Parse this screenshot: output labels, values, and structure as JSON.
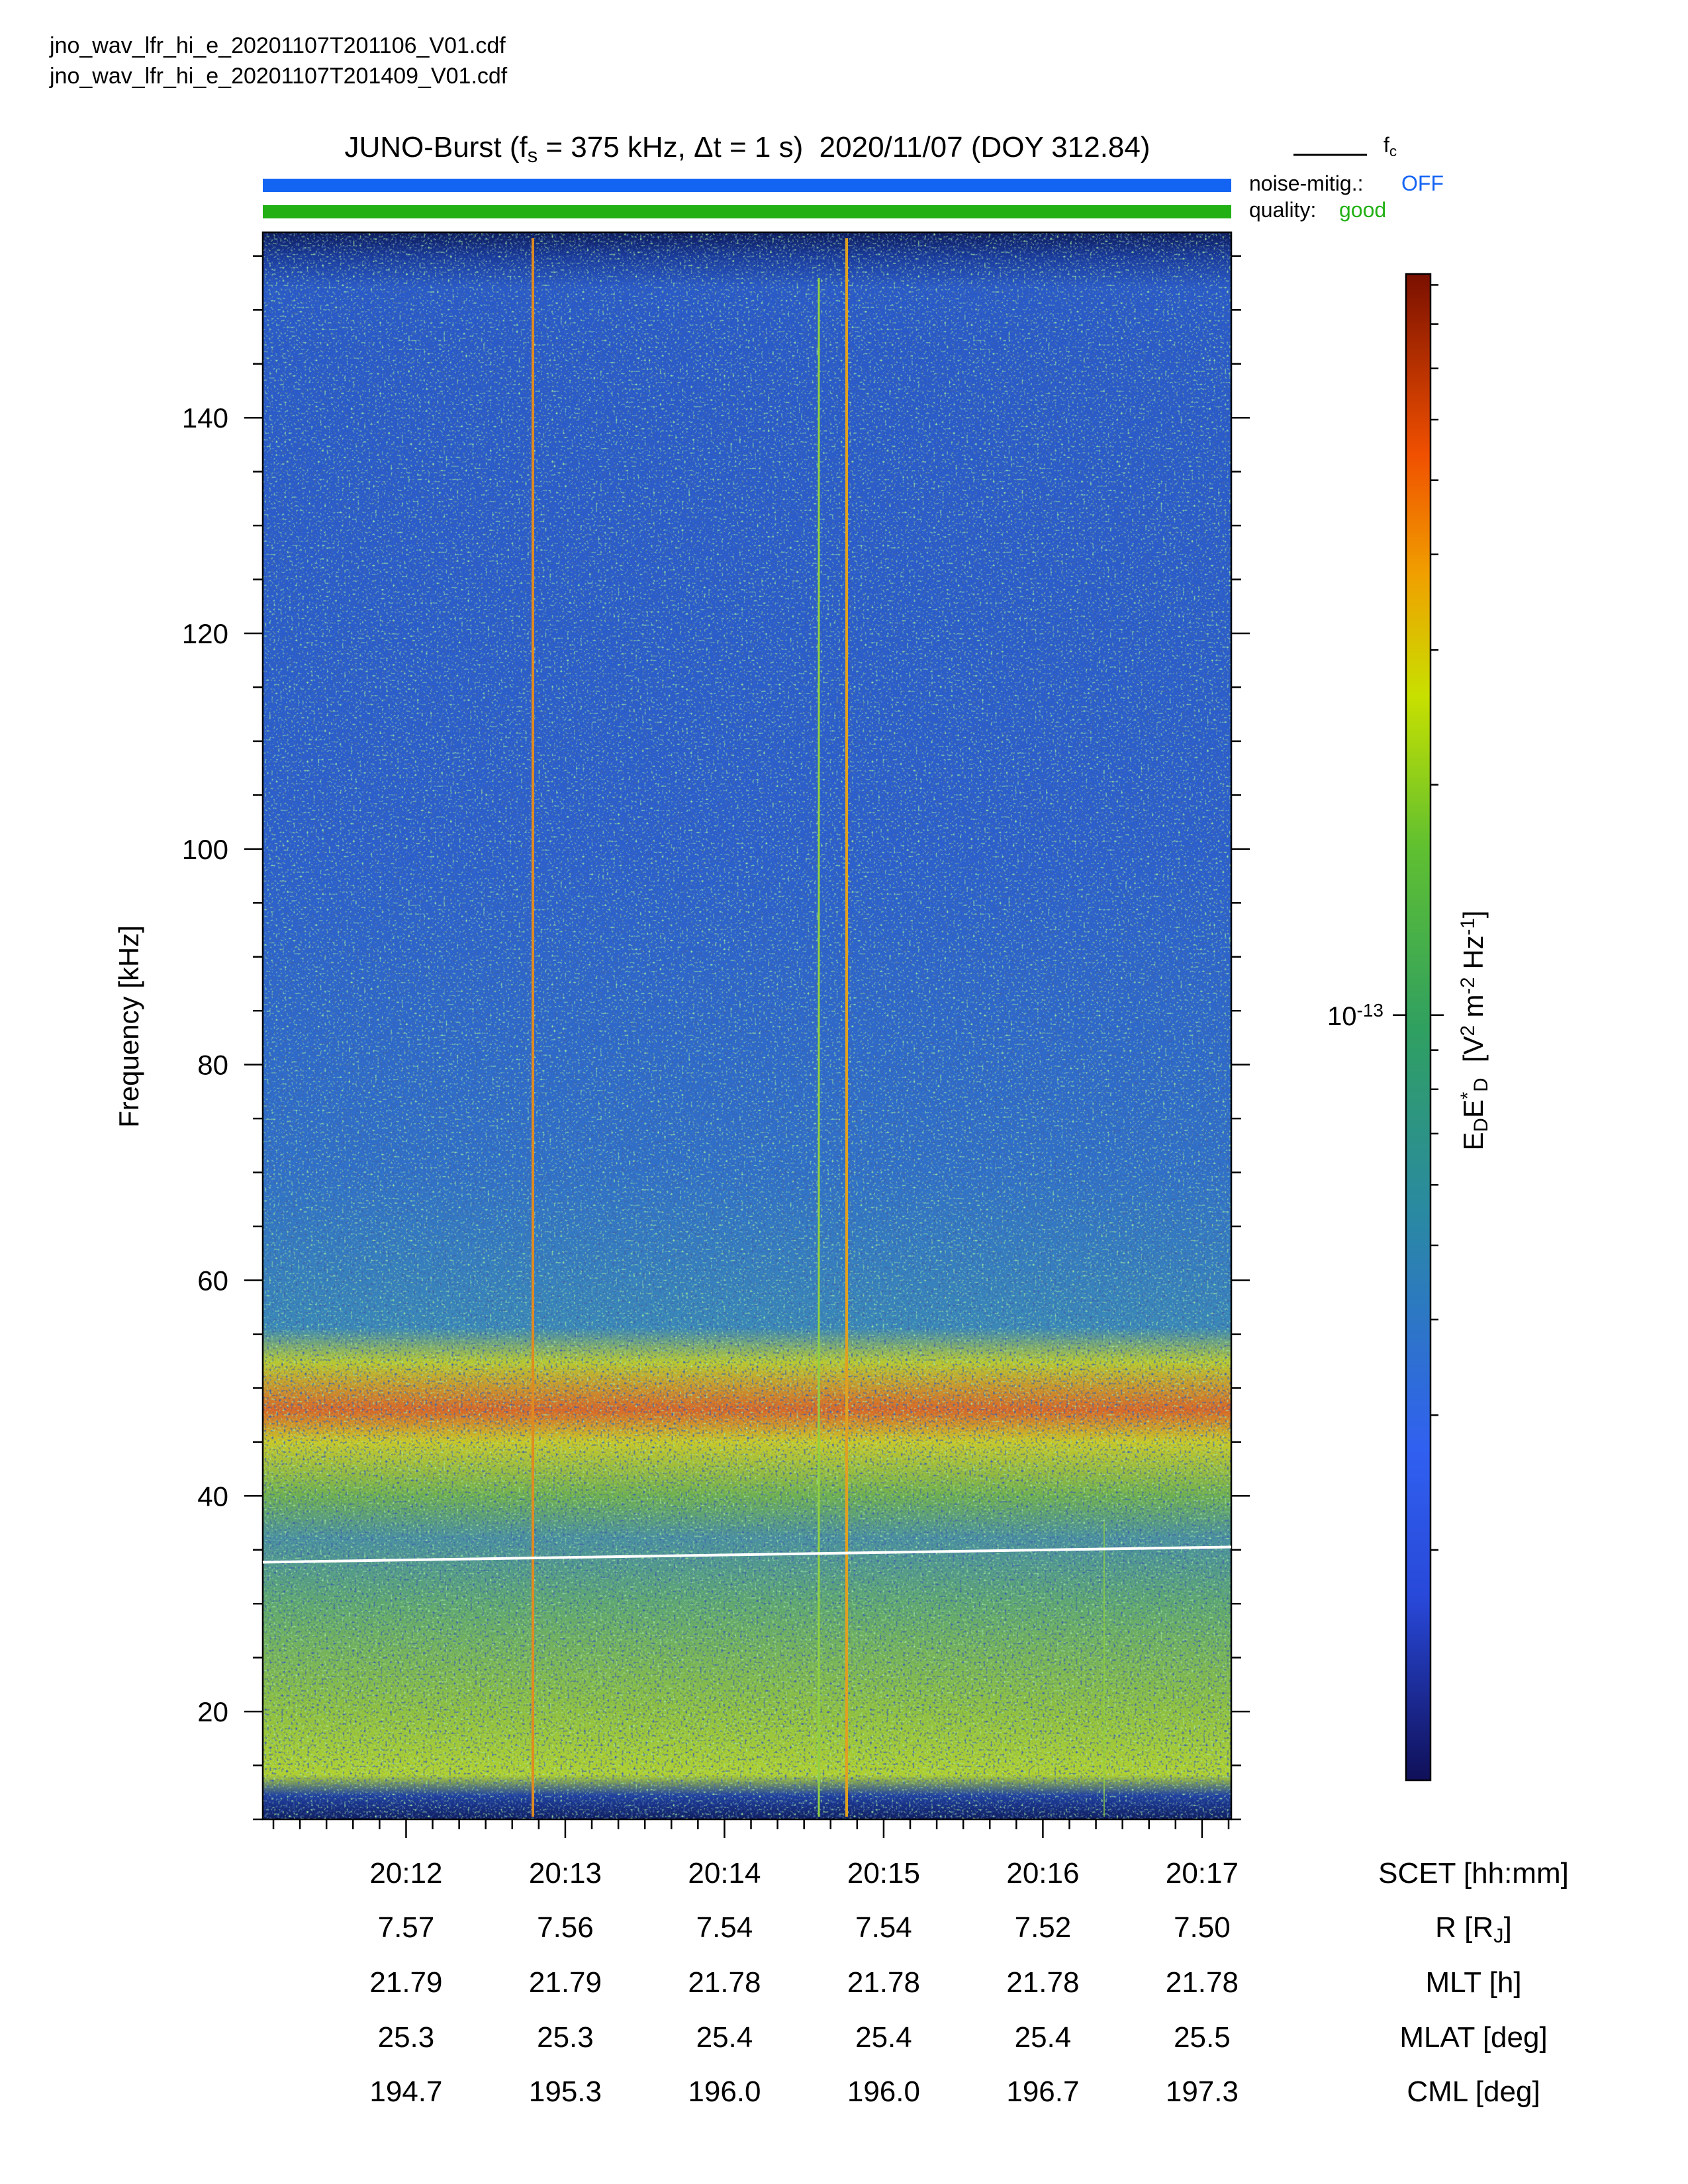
{
  "chart_data": {
    "type": "spectrogram",
    "files": [
      "jno_wav_lfr_hi_e_20201107T201106_V01.cdf",
      "jno_wav_lfr_hi_e_20201107T201409_V01.cdf"
    ],
    "title": [
      {
        "text": "JUNO-Burst (f"
      },
      {
        "text": "s",
        "sub": true
      },
      {
        "text": " = 375 kHz, Δt = 1 s)  2020/11/07 (DOY 312.84)"
      }
    ],
    "status": [
      {
        "label": "noise-mitig.:",
        "value": "OFF",
        "color": "#1464f4"
      },
      {
        "label": "quality:",
        "value": "good",
        "color": "#22b014"
      }
    ],
    "ylabel": "Frequency [kHz]",
    "ylim": [
      10,
      157.2
    ],
    "yticks": [
      20,
      40,
      60,
      80,
      100,
      120,
      140
    ],
    "yticks_minor": [
      10,
      15,
      25,
      30,
      35,
      45,
      50,
      55,
      65,
      70,
      75,
      85,
      90,
      95,
      105,
      110,
      115,
      125,
      130,
      135,
      145,
      150,
      155
    ],
    "xlabel": "SCET [hh:mm]",
    "xlim": [
      72666,
      73031
    ],
    "xticks": [
      {
        "value": 72720,
        "label": "20:12"
      },
      {
        "value": 72780,
        "label": "20:13"
      },
      {
        "value": 72840,
        "label": "20:14"
      },
      {
        "value": 72900,
        "label": "20:15"
      },
      {
        "value": 72960,
        "label": "20:16"
      },
      {
        "value": 73020,
        "label": "20:17"
      }
    ],
    "xticks_minor": [
      72670,
      72680,
      72690,
      72700,
      72710,
      72730,
      72740,
      72750,
      72760,
      72770,
      72790,
      72800,
      72810,
      72820,
      72830,
      72850,
      72860,
      72870,
      72880,
      72890,
      72910,
      72920,
      72930,
      72940,
      72950,
      72970,
      72980,
      72990,
      73000,
      73010,
      73030
    ],
    "series": [
      {
        "name": [
          {
            "text": "f"
          },
          {
            "text": "c",
            "sub": true
          }
        ],
        "color": "#ffffff",
        "x": [
          72666,
          73031
        ],
        "values": [
          33.85,
          35.26
        ]
      }
    ],
    "ephemeris": [
      {
        "label": [
          {
            "text": "R [R"
          },
          {
            "text": "J",
            "sub": true
          },
          {
            "text": "]"
          }
        ],
        "values": [
          "7.57",
          "7.56",
          "7.54",
          "7.54",
          "7.52",
          "7.50"
        ]
      },
      {
        "label": [
          {
            "text": "MLT [h]"
          }
        ],
        "values": [
          "21.79",
          "21.79",
          "21.78",
          "21.78",
          "21.78",
          "21.78"
        ]
      },
      {
        "label": [
          {
            "text": "MLAT [deg]"
          }
        ],
        "values": [
          "25.3",
          "25.3",
          "25.4",
          "25.4",
          "25.4",
          "25.5"
        ]
      },
      {
        "label": [
          {
            "text": "CML [deg]"
          }
        ],
        "values": [
          "194.7",
          "195.3",
          "196.0",
          "196.0",
          "196.7",
          "197.3"
        ]
      }
    ],
    "colorbar": {
      "log": true,
      "lim": [
        1e-14,
        9.3e-13
      ],
      "ticks": [
        {
          "value": 1e-13,
          "label": [
            {
              "text": "10"
            },
            {
              "text": "-13",
              "sup": true
            }
          ]
        }
      ],
      "ticks_minor": [
        2e-14,
        3e-14,
        4e-14,
        5e-14,
        6e-14,
        7e-14,
        8e-14,
        9e-14,
        2e-13,
        3e-13,
        4e-13,
        5e-13,
        6e-13,
        7e-13,
        8e-13,
        9e-13
      ],
      "label": [
        {
          "text": "E"
        },
        {
          "text": "D",
          "sub": true
        },
        {
          "text": "E"
        },
        {
          "text": "*",
          "sup": true
        },
        {
          "text": "D",
          "sub": true
        },
        {
          "text": "  [V"
        },
        {
          "text": "2",
          "sup": true
        },
        {
          "text": " m"
        },
        {
          "text": "-2",
          "sup": true
        },
        {
          "text": " Hz"
        },
        {
          "text": "-1",
          "sup": true
        },
        {
          "text": "]"
        }
      ]
    }
  }
}
